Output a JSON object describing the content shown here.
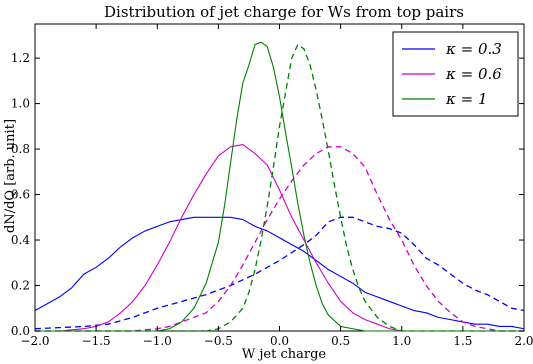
{
  "chart_data": {
    "type": "line",
    "title": "Distribution of jet charge for Ws from top pairs",
    "xlabel": "W jet charge",
    "ylabel": "dN/dQ [arb. unit]",
    "xlim": [
      -2.0,
      2.0
    ],
    "ylim": [
      0.0,
      1.35
    ],
    "xticks": [
      "−2.0",
      "−1.5",
      "−1.0",
      "−0.5",
      "0.0",
      "0.5",
      "1.0",
      "1.5",
      "2.0"
    ],
    "yticks": [
      "0.0",
      "0.2",
      "0.4",
      "0.6",
      "0.8",
      "1.0",
      "1.2"
    ],
    "grid": false,
    "legend_position": "top-right",
    "series": [
      {
        "name": "κ = 0.3",
        "color": "#0000ff",
        "style": "solid",
        "points": [
          [
            -2.0,
            0.09
          ],
          [
            -1.9,
            0.12
          ],
          [
            -1.8,
            0.15
          ],
          [
            -1.7,
            0.19
          ],
          [
            -1.6,
            0.25
          ],
          [
            -1.5,
            0.28
          ],
          [
            -1.4,
            0.32
          ],
          [
            -1.3,
            0.37
          ],
          [
            -1.2,
            0.41
          ],
          [
            -1.1,
            0.44
          ],
          [
            -1.0,
            0.46
          ],
          [
            -0.9,
            0.48
          ],
          [
            -0.8,
            0.49
          ],
          [
            -0.7,
            0.5
          ],
          [
            -0.6,
            0.5
          ],
          [
            -0.5,
            0.5
          ],
          [
            -0.4,
            0.5
          ],
          [
            -0.3,
            0.49
          ],
          [
            -0.2,
            0.46
          ],
          [
            -0.1,
            0.44
          ],
          [
            0.0,
            0.41
          ],
          [
            0.1,
            0.38
          ],
          [
            0.2,
            0.35
          ],
          [
            0.3,
            0.31
          ],
          [
            0.4,
            0.27
          ],
          [
            0.5,
            0.24
          ],
          [
            0.6,
            0.21
          ],
          [
            0.7,
            0.17
          ],
          [
            0.8,
            0.15
          ],
          [
            0.9,
            0.13
          ],
          [
            1.0,
            0.11
          ],
          [
            1.1,
            0.09
          ],
          [
            1.2,
            0.08
          ],
          [
            1.3,
            0.06
          ],
          [
            1.4,
            0.05
          ],
          [
            1.5,
            0.04
          ],
          [
            1.6,
            0.03
          ],
          [
            1.7,
            0.03
          ],
          [
            1.8,
            0.02
          ],
          [
            1.9,
            0.02
          ],
          [
            2.0,
            0.01
          ]
        ]
      },
      {
        "name": "",
        "color": "#0000ff",
        "style": "dashed",
        "points": [
          [
            -2.0,
            0.01
          ],
          [
            -1.8,
            0.015
          ],
          [
            -1.6,
            0.02
          ],
          [
            -1.4,
            0.03
          ],
          [
            -1.2,
            0.06
          ],
          [
            -1.0,
            0.1
          ],
          [
            -0.8,
            0.13
          ],
          [
            -0.6,
            0.16
          ],
          [
            -0.4,
            0.2
          ],
          [
            -0.2,
            0.25
          ],
          [
            0.0,
            0.31
          ],
          [
            0.2,
            0.38
          ],
          [
            0.3,
            0.42
          ],
          [
            0.4,
            0.48
          ],
          [
            0.5,
            0.5
          ],
          [
            0.6,
            0.5
          ],
          [
            0.7,
            0.48
          ],
          [
            0.8,
            0.46
          ],
          [
            0.9,
            0.45
          ],
          [
            1.0,
            0.43
          ],
          [
            1.1,
            0.38
          ],
          [
            1.2,
            0.32
          ],
          [
            1.3,
            0.29
          ],
          [
            1.4,
            0.25
          ],
          [
            1.5,
            0.21
          ],
          [
            1.6,
            0.18
          ],
          [
            1.7,
            0.16
          ],
          [
            1.8,
            0.13
          ],
          [
            1.9,
            0.1
          ],
          [
            2.0,
            0.09
          ]
        ]
      },
      {
        "name": "κ = 0.6",
        "color": "#cc00cc",
        "style": "solid",
        "points": [
          [
            -2.0,
            0.0
          ],
          [
            -1.8,
            0.0
          ],
          [
            -1.6,
            0.01
          ],
          [
            -1.5,
            0.02
          ],
          [
            -1.4,
            0.04
          ],
          [
            -1.3,
            0.08
          ],
          [
            -1.2,
            0.13
          ],
          [
            -1.1,
            0.2
          ],
          [
            -1.0,
            0.29
          ],
          [
            -0.9,
            0.39
          ],
          [
            -0.8,
            0.5
          ],
          [
            -0.7,
            0.6
          ],
          [
            -0.6,
            0.69
          ],
          [
            -0.5,
            0.77
          ],
          [
            -0.4,
            0.81
          ],
          [
            -0.3,
            0.82
          ],
          [
            -0.2,
            0.78
          ],
          [
            -0.1,
            0.73
          ],
          [
            0.0,
            0.62
          ],
          [
            0.1,
            0.5
          ],
          [
            0.2,
            0.4
          ],
          [
            0.3,
            0.3
          ],
          [
            0.4,
            0.21
          ],
          [
            0.5,
            0.13
          ],
          [
            0.6,
            0.08
          ],
          [
            0.7,
            0.05
          ],
          [
            0.8,
            0.03
          ],
          [
            0.9,
            0.01
          ],
          [
            1.0,
            0.0
          ],
          [
            1.2,
            0.0
          ],
          [
            2.0,
            0.0
          ]
        ]
      },
      {
        "name": "",
        "color": "#cc00cc",
        "style": "dashed",
        "points": [
          [
            -2.0,
            0.0
          ],
          [
            -1.2,
            0.0
          ],
          [
            -1.0,
            0.01
          ],
          [
            -0.9,
            0.02
          ],
          [
            -0.8,
            0.04
          ],
          [
            -0.7,
            0.06
          ],
          [
            -0.6,
            0.08
          ],
          [
            -0.5,
            0.13
          ],
          [
            -0.4,
            0.2
          ],
          [
            -0.3,
            0.29
          ],
          [
            -0.2,
            0.39
          ],
          [
            -0.1,
            0.49
          ],
          [
            0.0,
            0.58
          ],
          [
            0.1,
            0.66
          ],
          [
            0.2,
            0.73
          ],
          [
            0.3,
            0.78
          ],
          [
            0.4,
            0.81
          ],
          [
            0.5,
            0.81
          ],
          [
            0.6,
            0.78
          ],
          [
            0.7,
            0.72
          ],
          [
            0.8,
            0.6
          ],
          [
            0.9,
            0.49
          ],
          [
            1.0,
            0.4
          ],
          [
            1.1,
            0.29
          ],
          [
            1.2,
            0.2
          ],
          [
            1.3,
            0.13
          ],
          [
            1.4,
            0.08
          ],
          [
            1.5,
            0.04
          ],
          [
            1.6,
            0.02
          ],
          [
            1.7,
            0.01
          ],
          [
            1.8,
            0.0
          ],
          [
            2.0,
            0.0
          ]
        ]
      },
      {
        "name": "κ = 1",
        "color": "#008000",
        "style": "solid",
        "points": [
          [
            -2.0,
            0.0
          ],
          [
            -1.0,
            0.0
          ],
          [
            -0.9,
            0.01
          ],
          [
            -0.8,
            0.04
          ],
          [
            -0.7,
            0.1
          ],
          [
            -0.6,
            0.21
          ],
          [
            -0.5,
            0.39
          ],
          [
            -0.45,
            0.55
          ],
          [
            -0.4,
            0.74
          ],
          [
            -0.35,
            0.93
          ],
          [
            -0.3,
            1.09
          ],
          [
            -0.25,
            1.17
          ],
          [
            -0.2,
            1.26
          ],
          [
            -0.15,
            1.27
          ],
          [
            -0.1,
            1.25
          ],
          [
            -0.05,
            1.16
          ],
          [
            0.0,
            1.03
          ],
          [
            0.05,
            0.87
          ],
          [
            0.1,
            0.72
          ],
          [
            0.15,
            0.56
          ],
          [
            0.2,
            0.42
          ],
          [
            0.25,
            0.3
          ],
          [
            0.3,
            0.2
          ],
          [
            0.35,
            0.12
          ],
          [
            0.4,
            0.07
          ],
          [
            0.5,
            0.02
          ],
          [
            0.6,
            0.01
          ],
          [
            0.7,
            0.0
          ],
          [
            2.0,
            0.0
          ]
        ]
      },
      {
        "name": "",
        "color": "#008000",
        "style": "dashed",
        "points": [
          [
            -2.0,
            0.0
          ],
          [
            -0.6,
            0.0
          ],
          [
            -0.5,
            0.01
          ],
          [
            -0.4,
            0.04
          ],
          [
            -0.3,
            0.1
          ],
          [
            -0.25,
            0.17
          ],
          [
            -0.2,
            0.27
          ],
          [
            -0.15,
            0.4
          ],
          [
            -0.1,
            0.55
          ],
          [
            -0.05,
            0.72
          ],
          [
            0.0,
            0.9
          ],
          [
            0.05,
            1.05
          ],
          [
            0.1,
            1.2
          ],
          [
            0.15,
            1.26
          ],
          [
            0.2,
            1.24
          ],
          [
            0.25,
            1.17
          ],
          [
            0.3,
            1.06
          ],
          [
            0.35,
            0.93
          ],
          [
            0.4,
            0.79
          ],
          [
            0.45,
            0.64
          ],
          [
            0.5,
            0.5
          ],
          [
            0.55,
            0.37
          ],
          [
            0.6,
            0.27
          ],
          [
            0.65,
            0.19
          ],
          [
            0.7,
            0.13
          ],
          [
            0.8,
            0.06
          ],
          [
            0.9,
            0.02
          ],
          [
            1.0,
            0.0
          ],
          [
            2.0,
            0.0
          ]
        ]
      }
    ]
  }
}
